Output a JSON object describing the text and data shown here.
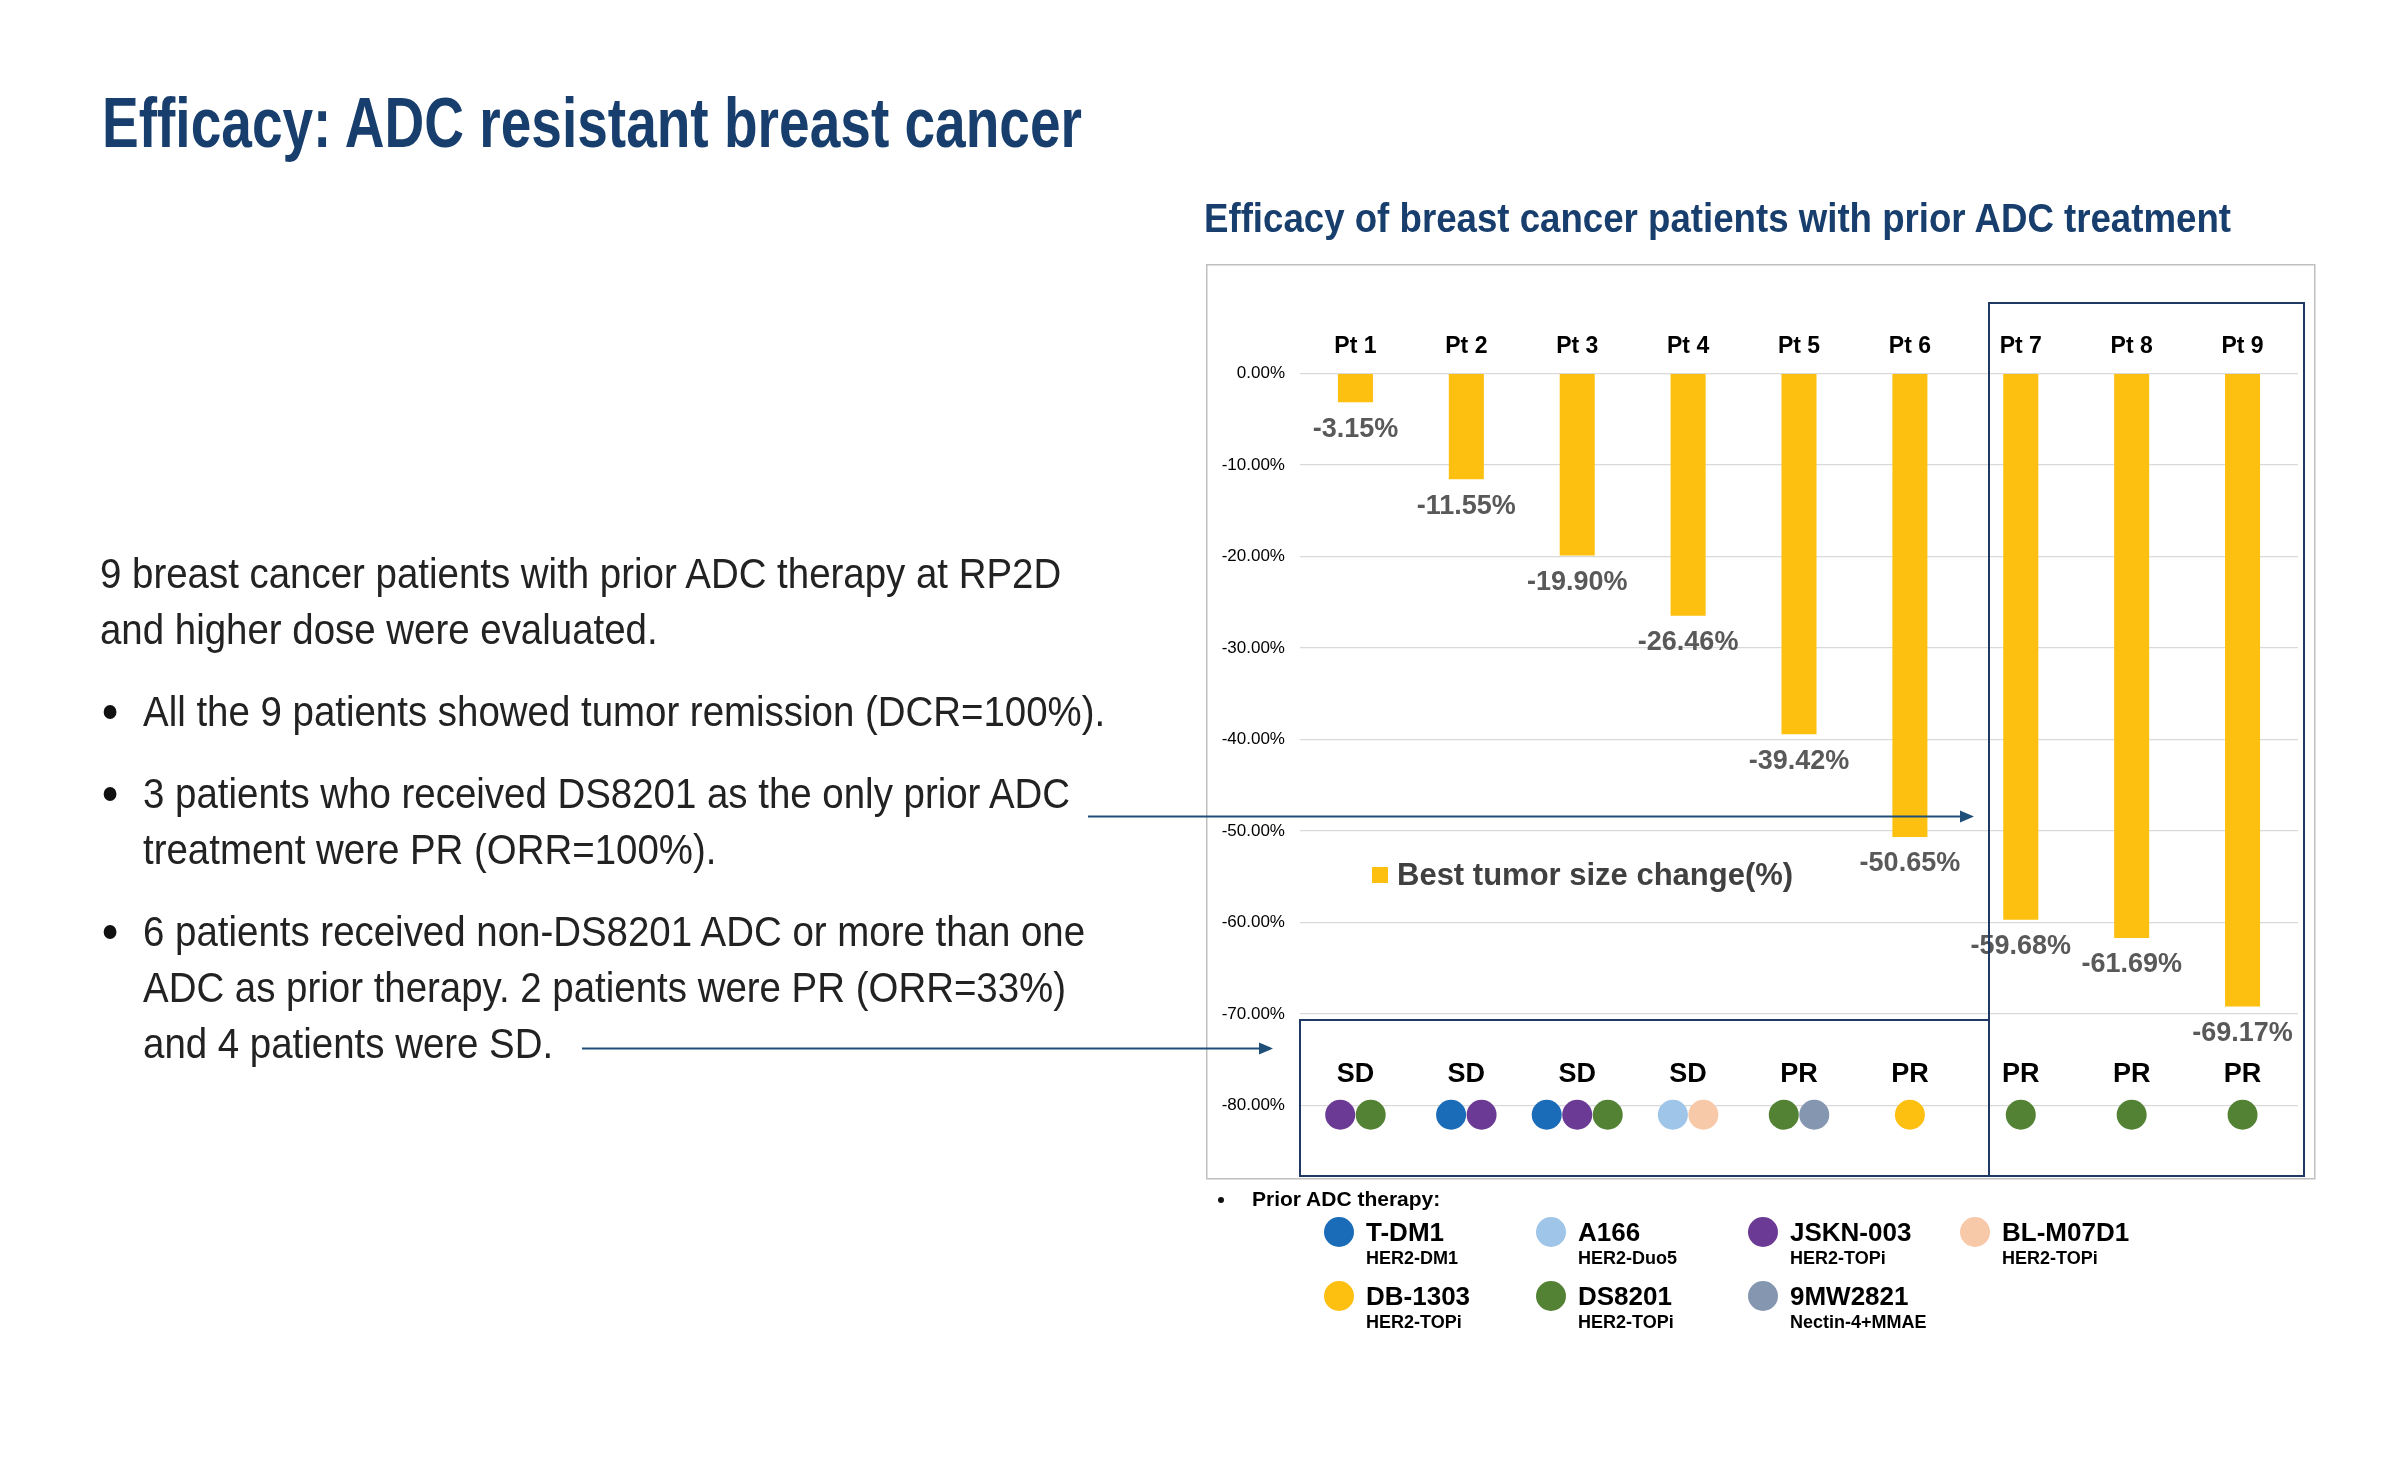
{
  "chart_data": {
    "type": "bar",
    "title": "Efficacy: ADC resistant breast cancer",
    "subtitle": "Efficacy of breast cancer patients with prior ADC treatment",
    "legend_title": "Prior ADC therapy:",
    "categories": [
      "Pt 1",
      "Pt 2",
      "Pt 3",
      "Pt 4",
      "Pt 5",
      "Pt 6",
      "Pt 7",
      "Pt 8",
      "Pt 9"
    ],
    "series": [
      {
        "name": "Best tumor size change(%)",
        "type": "bar",
        "color": "#fdc010",
        "values": [
          -3.15,
          -11.55,
          -19.9,
          -26.46,
          -39.42,
          -50.65,
          -59.68,
          -61.69,
          -69.17
        ],
        "value_labels": [
          "-3.15%",
          "-11.55%",
          "-19.90%",
          "-26.46%",
          "-39.42%",
          "-50.65%",
          "-59.68%",
          "-61.69%",
          "-69.17%"
        ]
      },
      {
        "name": "T-DM1\nHER2-DM1",
        "type": "scatter",
        "color": "#1a6bb8",
        "x": [
          "Pt 2",
          "Pt 3"
        ],
        "values": [
          -81,
          -81
        ]
      },
      {
        "name": "A166\nHER2-Duo5",
        "type": "scatter",
        "color": "#9fc5e8",
        "x": [
          "Pt 4"
        ],
        "values": [
          -81
        ]
      },
      {
        "name": "JSKN-003\nHER2-TOPi",
        "type": "scatter",
        "color": "#6b3a94",
        "x": [
          "Pt 1",
          "Pt 2",
          "Pt 3"
        ],
        "values": [
          -81,
          -81,
          -81
        ]
      },
      {
        "name": "BL-M07D1\nHER2-TOPi",
        "type": "scatter",
        "color": "#f8c9a8",
        "x": [
          "Pt 4"
        ],
        "values": [
          -81
        ]
      },
      {
        "name": "DB-1303\nHER2-TOPi",
        "type": "scatter",
        "color": "#fdc010",
        "x": [
          "Pt 6"
        ],
        "values": [
          -81
        ]
      },
      {
        "name": "DS8201\nHER2-TOPi",
        "type": "scatter",
        "color": "#538234",
        "x": [
          "Pt 1",
          "Pt 3",
          "Pt 5",
          "Pt 7",
          "Pt 8",
          "Pt 9"
        ],
        "values": [
          -81,
          -81,
          -81,
          -81,
          -81,
          -81
        ]
      },
      {
        "name": "9MW2821\nNectin-4+MMAE",
        "type": "scatter",
        "color": "#8596b0",
        "x": [
          "Pt 5"
        ],
        "values": [
          -81
        ]
      }
    ],
    "ylim": [
      -88,
      0
    ],
    "yticks": [
      {
        "value": 0,
        "label": "0.00%"
      },
      {
        "value": -10,
        "label": "-10.00%"
      },
      {
        "value": -20,
        "label": "-20.00%"
      },
      {
        "value": -30,
        "label": "-30.00%"
      },
      {
        "value": -40,
        "label": "-40.00%"
      },
      {
        "value": -50,
        "label": "-50.00%"
      },
      {
        "value": -60,
        "label": "-60.00%"
      },
      {
        "value": -70,
        "label": "-70.00%"
      },
      {
        "value": -80,
        "label": "-80.00%"
      }
    ],
    "grid": "y",
    "legend": "bottom",
    "marker": "circle",
    "annotations": [
      "9 breast cancer patients with prior ADC therapy at RP2D and higher dose were evaluated.",
      "All the 9 patients showed tumor remission (DCR=100%).",
      "3 patients who received DS8201 as the only prior ADC treatment were PR (ORR=100%).",
      "6 patients received non-DS8201 ADC or more than one ADC as prior therapy. 2 patients were PR (ORR=33%) and 4 patients were SD.",
      {
        "text": "SD",
        "x": "Pt 1",
        "y": -81
      },
      {
        "text": "SD",
        "x": "Pt 2",
        "y": -81
      },
      {
        "text": "SD",
        "x": "Pt 3",
        "y": -81
      },
      {
        "text": "SD",
        "x": "Pt 4",
        "y": -81
      },
      {
        "text": "PR",
        "x": "Pt 5",
        "y": -81
      },
      {
        "text": "PR",
        "x": "Pt 6",
        "y": -81
      },
      {
        "text": "PR",
        "x": "Pt 7",
        "y": -81
      },
      {
        "text": "PR",
        "x": "Pt 8",
        "y": -81
      },
      {
        "text": "PR",
        "x": "Pt 9",
        "y": -81
      }
    ]
  }
}
